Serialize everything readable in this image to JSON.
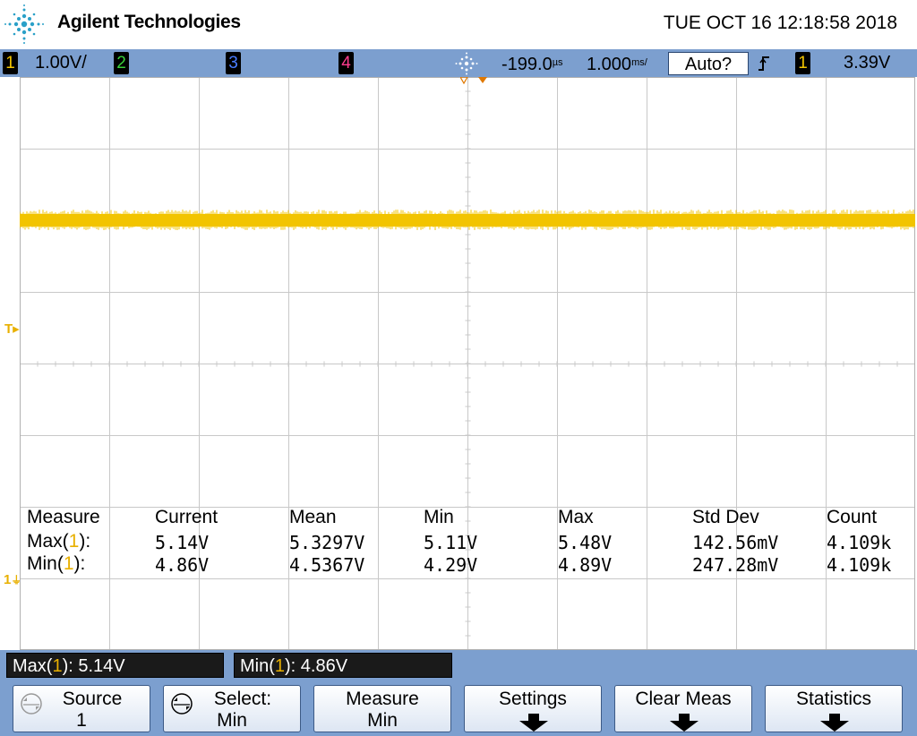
{
  "header": {
    "brand": "Agilent Technologies",
    "datetime": "TUE OCT 16 12:18:58 2018",
    "logo_icon": "agilent-spark-logo"
  },
  "status_bar": {
    "channels": [
      {
        "number": "1",
        "scale": "1.00V/",
        "color": "#f2c400"
      },
      {
        "number": "2",
        "scale": "",
        "color": "#3ad13a"
      },
      {
        "number": "3",
        "scale": "",
        "color": "#4a7dff"
      },
      {
        "number": "4",
        "scale": "",
        "color": "#ff3c8e"
      }
    ],
    "run_icon": "trigger-sparkle-icon",
    "delay": "-199.0",
    "delay_unit": "µs",
    "timebase": "1.000",
    "timebase_unit": "ms/",
    "trigger_mode": "Auto?",
    "trigger_slope_icon": "rising-edge-icon",
    "trigger_source": "1",
    "trigger_level": "3.39V"
  },
  "screen": {
    "trigger_marker": "T",
    "ground_marker": "1",
    "trace_color": "#f2c400",
    "grid_color": "#c8c8c8"
  },
  "measurements": {
    "headers": [
      "Measure",
      "Current",
      "Mean",
      "Min",
      "Max",
      "Std Dev",
      "Count"
    ],
    "rows": [
      {
        "name": "Max(",
        "channel": "1",
        "close": "):",
        "current": "5.14V",
        "mean": "5.3297V",
        "min": "5.11V",
        "max": "5.48V",
        "stddev": "142.56mV",
        "count": "4.109k"
      },
      {
        "name": "Min(",
        "channel": "1",
        "close": "):",
        "current": "4.86V",
        "mean": "4.5367V",
        "min": "4.29V",
        "max": "4.89V",
        "stddev": "247.28mV",
        "count": "4.109k"
      }
    ]
  },
  "readouts": [
    {
      "name": "Max(",
      "channel": "1",
      "value": "): 5.14V"
    },
    {
      "name": "Min(",
      "channel": "1",
      "value": "): 4.86V"
    }
  ],
  "softkeys": [
    {
      "line1": "Source",
      "line2": "1",
      "icon": "rotary-knob-icon"
    },
    {
      "line1": "Select:",
      "line2": "Min",
      "icon": "rotary-knob-icon"
    },
    {
      "line1": "Measure",
      "line2": "Min",
      "icon": ""
    },
    {
      "line1": "Settings",
      "line2": "",
      "icon": "submenu-arrow-icon"
    },
    {
      "line1": "Clear Meas",
      "line2": "",
      "icon": "submenu-arrow-icon"
    },
    {
      "line1": "Statistics",
      "line2": "",
      "icon": "submenu-arrow-icon"
    }
  ]
}
